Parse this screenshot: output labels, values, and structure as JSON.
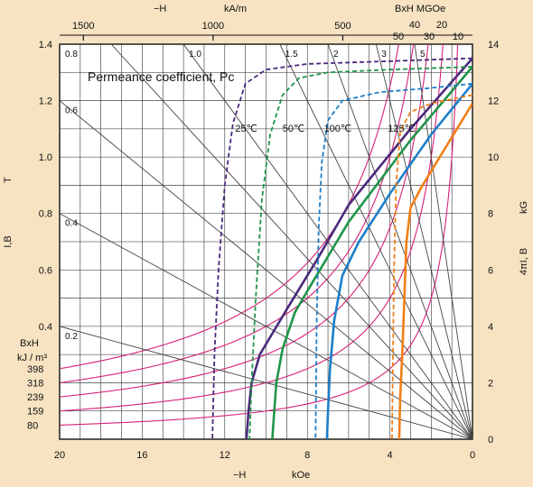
{
  "chart_data": {
    "type": "line",
    "title": "",
    "annotation": "Permeance coefficient, Pc",
    "x_bottom": {
      "label_left": "−H",
      "label_right": "kOe",
      "range": [
        20,
        0
      ],
      "ticks": [
        "20",
        "16",
        "12",
        "8",
        "4",
        "0"
      ]
    },
    "x_top": {
      "label_left": "−H",
      "label_right": "kA/m",
      "ticks": [
        "1500",
        "1000",
        "500"
      ]
    },
    "y_left": {
      "label": "I,B",
      "unit": "T",
      "range": [
        0,
        1.4
      ],
      "ticks": [
        "1.4",
        "1.2",
        "1.0",
        "0.8",
        "0.6",
        "0.4"
      ]
    },
    "y_right": {
      "label": "4πI, B",
      "unit": "kG",
      "range": [
        0,
        14
      ],
      "ticks": [
        "14",
        "12",
        "10",
        "8",
        "6",
        "4",
        "2",
        "0"
      ]
    },
    "energy_product": {
      "bh_label": "BxH",
      "kj_label": "kJ / m³",
      "kj_values": [
        "398",
        "318",
        "239",
        "159",
        "80"
      ],
      "mgoe_header": "BxH  MGOe",
      "mgoe_values": [
        "50",
        "40",
        "30",
        "20",
        "10"
      ],
      "mgoe_products": [
        50,
        40,
        30,
        20,
        10
      ]
    },
    "permeance_lines": [
      {
        "label": "0.8",
        "slope": 0.8
      },
      {
        "label": "0.6",
        "slope": 0.6
      },
      {
        "label": "0.4",
        "slope": 0.4
      },
      {
        "label": "0.2",
        "slope": 0.2
      },
      {
        "label": "1.0",
        "slope": 1.0
      },
      {
        "label": "1.5",
        "slope": 1.5
      },
      {
        "label": "2",
        "slope": 2
      },
      {
        "label": "3",
        "slope": 3
      },
      {
        "label": "5",
        "slope": 5
      }
    ],
    "temperatures": [
      {
        "name": "25℃",
        "color": "#4b2a7c",
        "J": [
          [
            0,
            13.5
          ],
          [
            4,
            13.4
          ],
          [
            8,
            13.3
          ],
          [
            10,
            13.1
          ],
          [
            11,
            12.6
          ],
          [
            11.6,
            11.2
          ],
          [
            12,
            9
          ],
          [
            12.3,
            6
          ],
          [
            12.5,
            3
          ],
          [
            12.6,
            0
          ]
        ],
        "B": [
          [
            0,
            13.5
          ],
          [
            3,
            11.0
          ],
          [
            6,
            8.3
          ],
          [
            7.5,
            6.4
          ],
          [
            9,
            4.6
          ],
          [
            10.3,
            3.0
          ],
          [
            10.7,
            2.0
          ],
          [
            10.85,
            1.0
          ],
          [
            10.95,
            0
          ]
        ]
      },
      {
        "name": "50℃",
        "color": "#1e9448",
        "J": [
          [
            0,
            13.2
          ],
          [
            4,
            13.1
          ],
          [
            7,
            13.0
          ],
          [
            8.4,
            12.8
          ],
          [
            9.2,
            12.2
          ],
          [
            9.8,
            10.8
          ],
          [
            10.2,
            8.5
          ],
          [
            10.5,
            5
          ],
          [
            10.7,
            2
          ],
          [
            10.8,
            0
          ]
        ],
        "B": [
          [
            0,
            13.2
          ],
          [
            3,
            10.6
          ],
          [
            6,
            7.7
          ],
          [
            7.8,
            5.5
          ],
          [
            8.6,
            4.5
          ],
          [
            9.2,
            3.2
          ],
          [
            9.5,
            2.0
          ],
          [
            9.6,
            1.0
          ],
          [
            9.7,
            0
          ]
        ]
      },
      {
        "name": "100℃",
        "color": "#1c7ec8",
        "J": [
          [
            0,
            12.6
          ],
          [
            2,
            12.45
          ],
          [
            4.5,
            12.3
          ],
          [
            6.3,
            12.0
          ],
          [
            7.0,
            11.3
          ],
          [
            7.3,
            9.8
          ],
          [
            7.45,
            7.5
          ],
          [
            7.55,
            4
          ],
          [
            7.6,
            0
          ]
        ],
        "B": [
          [
            0,
            12.6
          ],
          [
            2,
            10.8
          ],
          [
            4,
            8.7
          ],
          [
            5.5,
            7.0
          ],
          [
            6.3,
            5.8
          ],
          [
            6.7,
            4.2
          ],
          [
            6.9,
            2.5
          ],
          [
            7.0,
            1.0
          ],
          [
            7.05,
            0
          ]
        ]
      },
      {
        "name": "125℃",
        "color": "#f07f16",
        "J": [
          [
            0,
            12.2
          ],
          [
            2,
            11.9
          ],
          [
            3,
            11.6
          ],
          [
            3.5,
            10.9
          ],
          [
            3.7,
            9.0
          ],
          [
            3.8,
            6.0
          ],
          [
            3.85,
            3
          ],
          [
            3.9,
            0
          ]
        ],
        "B": [
          [
            0,
            11.9
          ],
          [
            1.5,
            10.1
          ],
          [
            2.5,
            8.9
          ],
          [
            3.0,
            8.2
          ],
          [
            3.2,
            7.0
          ],
          [
            3.3,
            5.0
          ],
          [
            3.4,
            3.0
          ],
          [
            3.5,
            1.5
          ],
          [
            3.55,
            0
          ]
        ]
      }
    ],
    "grid": true
  }
}
